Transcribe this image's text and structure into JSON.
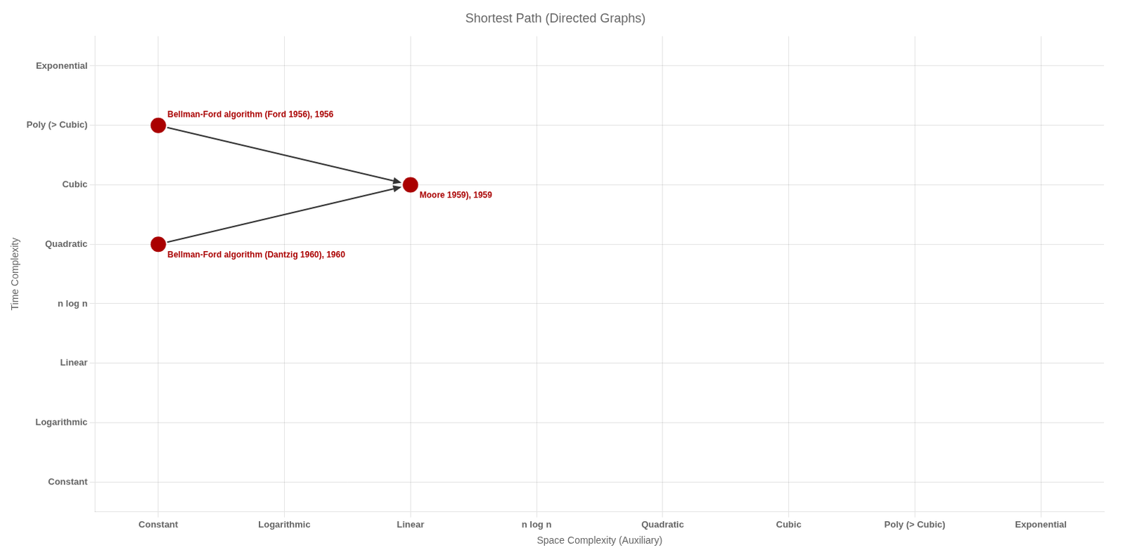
{
  "chart_data": {
    "type": "scatter",
    "title": "Shortest Path (Directed Graphs)",
    "xlabel": "Space Complexity (Auxiliary)",
    "ylabel": "Time Complexity",
    "xlim": [
      -0.5,
      7.5
    ],
    "ylim": [
      -0.5,
      7.5
    ],
    "xticks": [
      {
        "value": 0,
        "label": "Constant"
      },
      {
        "value": 1,
        "label": "Logarithmic"
      },
      {
        "value": 2,
        "label": "Linear"
      },
      {
        "value": 3,
        "label": "n log n"
      },
      {
        "value": 4,
        "label": "Quadratic"
      },
      {
        "value": 5,
        "label": "Cubic"
      },
      {
        "value": 6,
        "label": "Poly (> Cubic)"
      },
      {
        "value": 7,
        "label": "Exponential"
      }
    ],
    "yticks": [
      {
        "value": 0,
        "label": "Constant"
      },
      {
        "value": 1,
        "label": "Logarithmic"
      },
      {
        "value": 2,
        "label": "Linear"
      },
      {
        "value": 3,
        "label": "n log n"
      },
      {
        "value": 4,
        "label": "Quadratic"
      },
      {
        "value": 5,
        "label": "Cubic"
      },
      {
        "value": 6,
        "label": "Poly (> Cubic)"
      },
      {
        "value": 7,
        "label": "Exponential"
      }
    ],
    "grid": true,
    "points": [
      {
        "label": "Bellman-Ford algorithm (Ford 1956), 1956",
        "x": 0,
        "y": 6,
        "color": "#aa0000"
      },
      {
        "label": "Moore 1959), 1959",
        "x": 2,
        "y": 5,
        "color": "#aa0000"
      },
      {
        "label": "Bellman-Ford algorithm (Dantzig 1960), 1960",
        "x": 0,
        "y": 4,
        "color": "#aa0000"
      }
    ],
    "arrows": [
      {
        "from": [
          0,
          6
        ],
        "to": [
          2,
          5
        ]
      },
      {
        "from": [
          0,
          4
        ],
        "to": [
          2,
          5
        ]
      }
    ]
  }
}
